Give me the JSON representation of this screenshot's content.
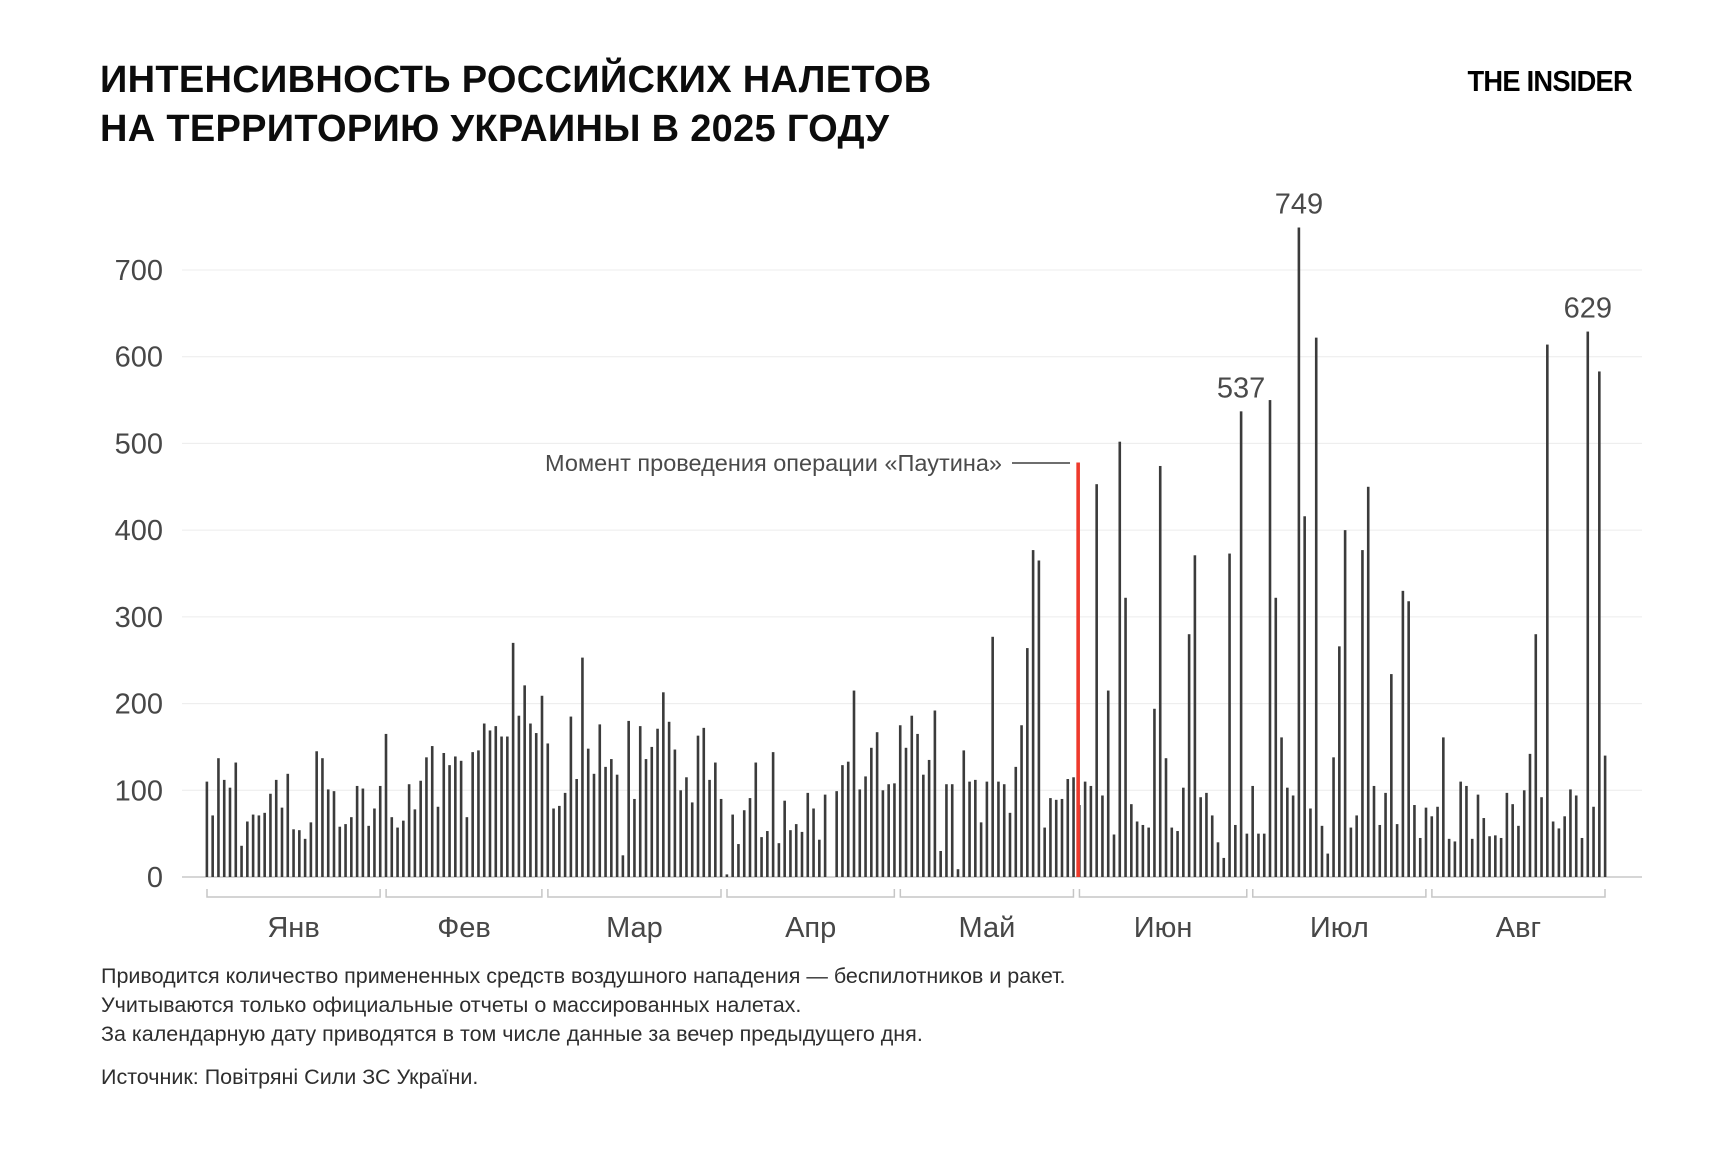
{
  "header": {
    "title_line1": "ИНТЕНСИВНОСТЬ РОССИЙСКИХ НАЛЕТОВ",
    "title_line2": "НА ТЕРРИТОРИЮ УКРАИНЫ В 2025 ГОДУ",
    "logo": "THE INSIDER"
  },
  "chart_data": {
    "type": "bar",
    "title": "Интенсивность российских налетов на территорию Украины в 2025 году",
    "grid": true,
    "y_axis": {
      "ticks": [
        0,
        100,
        200,
        300,
        400,
        500,
        600,
        700
      ],
      "max": 760
    },
    "categories": [
      "Янв",
      "Фев",
      "Мар",
      "Апр",
      "Май",
      "Июн",
      "Июл",
      "Авг"
    ],
    "months": [
      {
        "label": "Янв",
        "values": [
          110,
          71,
          137,
          112,
          103,
          132,
          36,
          64,
          72,
          71,
          74,
          96,
          112,
          80,
          119,
          55,
          54,
          44,
          63,
          145,
          137,
          101,
          99,
          58,
          61,
          69,
          105,
          102,
          59,
          79,
          105
        ]
      },
      {
        "label": "Фев",
        "values": [
          165,
          69,
          57,
          65,
          107,
          78,
          111,
          138,
          151,
          81,
          143,
          129,
          139,
          134,
          69,
          144,
          146,
          177,
          169,
          174,
          162,
          162,
          270,
          186,
          221,
          177,
          166,
          209
        ]
      },
      {
        "label": "Мар",
        "values": [
          154,
          79,
          82,
          97,
          185,
          113,
          253,
          148,
          119,
          176,
          127,
          136,
          118,
          25,
          180,
          90,
          174,
          136,
          150,
          171,
          213,
          179,
          147,
          100,
          115,
          86,
          163,
          172,
          112,
          132,
          90
        ]
      },
      {
        "label": "Апр",
        "values": [
          3,
          72,
          38,
          77,
          91,
          132,
          46,
          53,
          144,
          39,
          88,
          54,
          61,
          52,
          97,
          79,
          43,
          95,
          0,
          99,
          129,
          133,
          215,
          101,
          116,
          149,
          167,
          100,
          107,
          108
        ]
      },
      {
        "label": "Май",
        "values": [
          175,
          149,
          186,
          165,
          118,
          135,
          192,
          30,
          107,
          107,
          9,
          146,
          110,
          112,
          63,
          110,
          277,
          110,
          107,
          74,
          127,
          175,
          264,
          377,
          365,
          57,
          91,
          89,
          90,
          113,
          115
        ]
      },
      {
        "label": "Июн",
        "values": [
          83,
          110,
          105,
          453,
          94,
          215,
          49,
          502,
          322,
          84,
          64,
          60,
          57,
          194,
          474,
          137,
          57,
          53,
          103,
          280,
          371,
          92,
          97,
          71,
          40,
          22,
          373,
          60,
          537,
          50
        ]
      },
      {
        "label": "Июл",
        "values": [
          105,
          50,
          50,
          550,
          322,
          161,
          103,
          94,
          749,
          416,
          79,
          622,
          59,
          27,
          138,
          266,
          400,
          57,
          71,
          377,
          450,
          105,
          60,
          97,
          234,
          61,
          330,
          318,
          83,
          45,
          80
        ]
      },
      {
        "label": "Авг",
        "values": [
          70,
          81,
          161,
          44,
          41,
          110,
          105,
          44,
          95,
          68,
          47,
          48,
          45,
          97,
          84,
          59,
          100,
          142,
          280,
          92,
          614,
          64,
          56,
          70,
          101,
          94,
          45,
          629,
          81,
          583,
          140
        ]
      }
    ],
    "annotations": {
      "event_line": {
        "label": "Момент проведения операции «Паутина»",
        "day_index": 151,
        "top_value": 478,
        "color": "#ee3a2c"
      },
      "value_labels": [
        {
          "month_index": 5,
          "day": 29,
          "value": 537,
          "text": "537"
        },
        {
          "month_index": 6,
          "day": 9,
          "value": 749,
          "text": "749"
        },
        {
          "month_index": 7,
          "day": 28,
          "value": 629,
          "text": "629"
        }
      ]
    },
    "colors": {
      "bar": "#3b3b3b",
      "grid": "#ececec",
      "axis": "#c8c8c8",
      "bracket": "#c6c6c6",
      "tick_text": "#474747",
      "value_label": "#4a4a4a",
      "event_line": "#ee3a2c"
    }
  },
  "footer": {
    "notes": [
      "Приводится количество примененных средств воздушного нападения — беспилотников и ракет.",
      "Учитываются только официальные отчеты о массированных налетах.",
      "За календарную дату приводятся в том числе данные за вечер предыдущего дня."
    ],
    "source": "Источник: Повітряні Сили ЗС України."
  }
}
